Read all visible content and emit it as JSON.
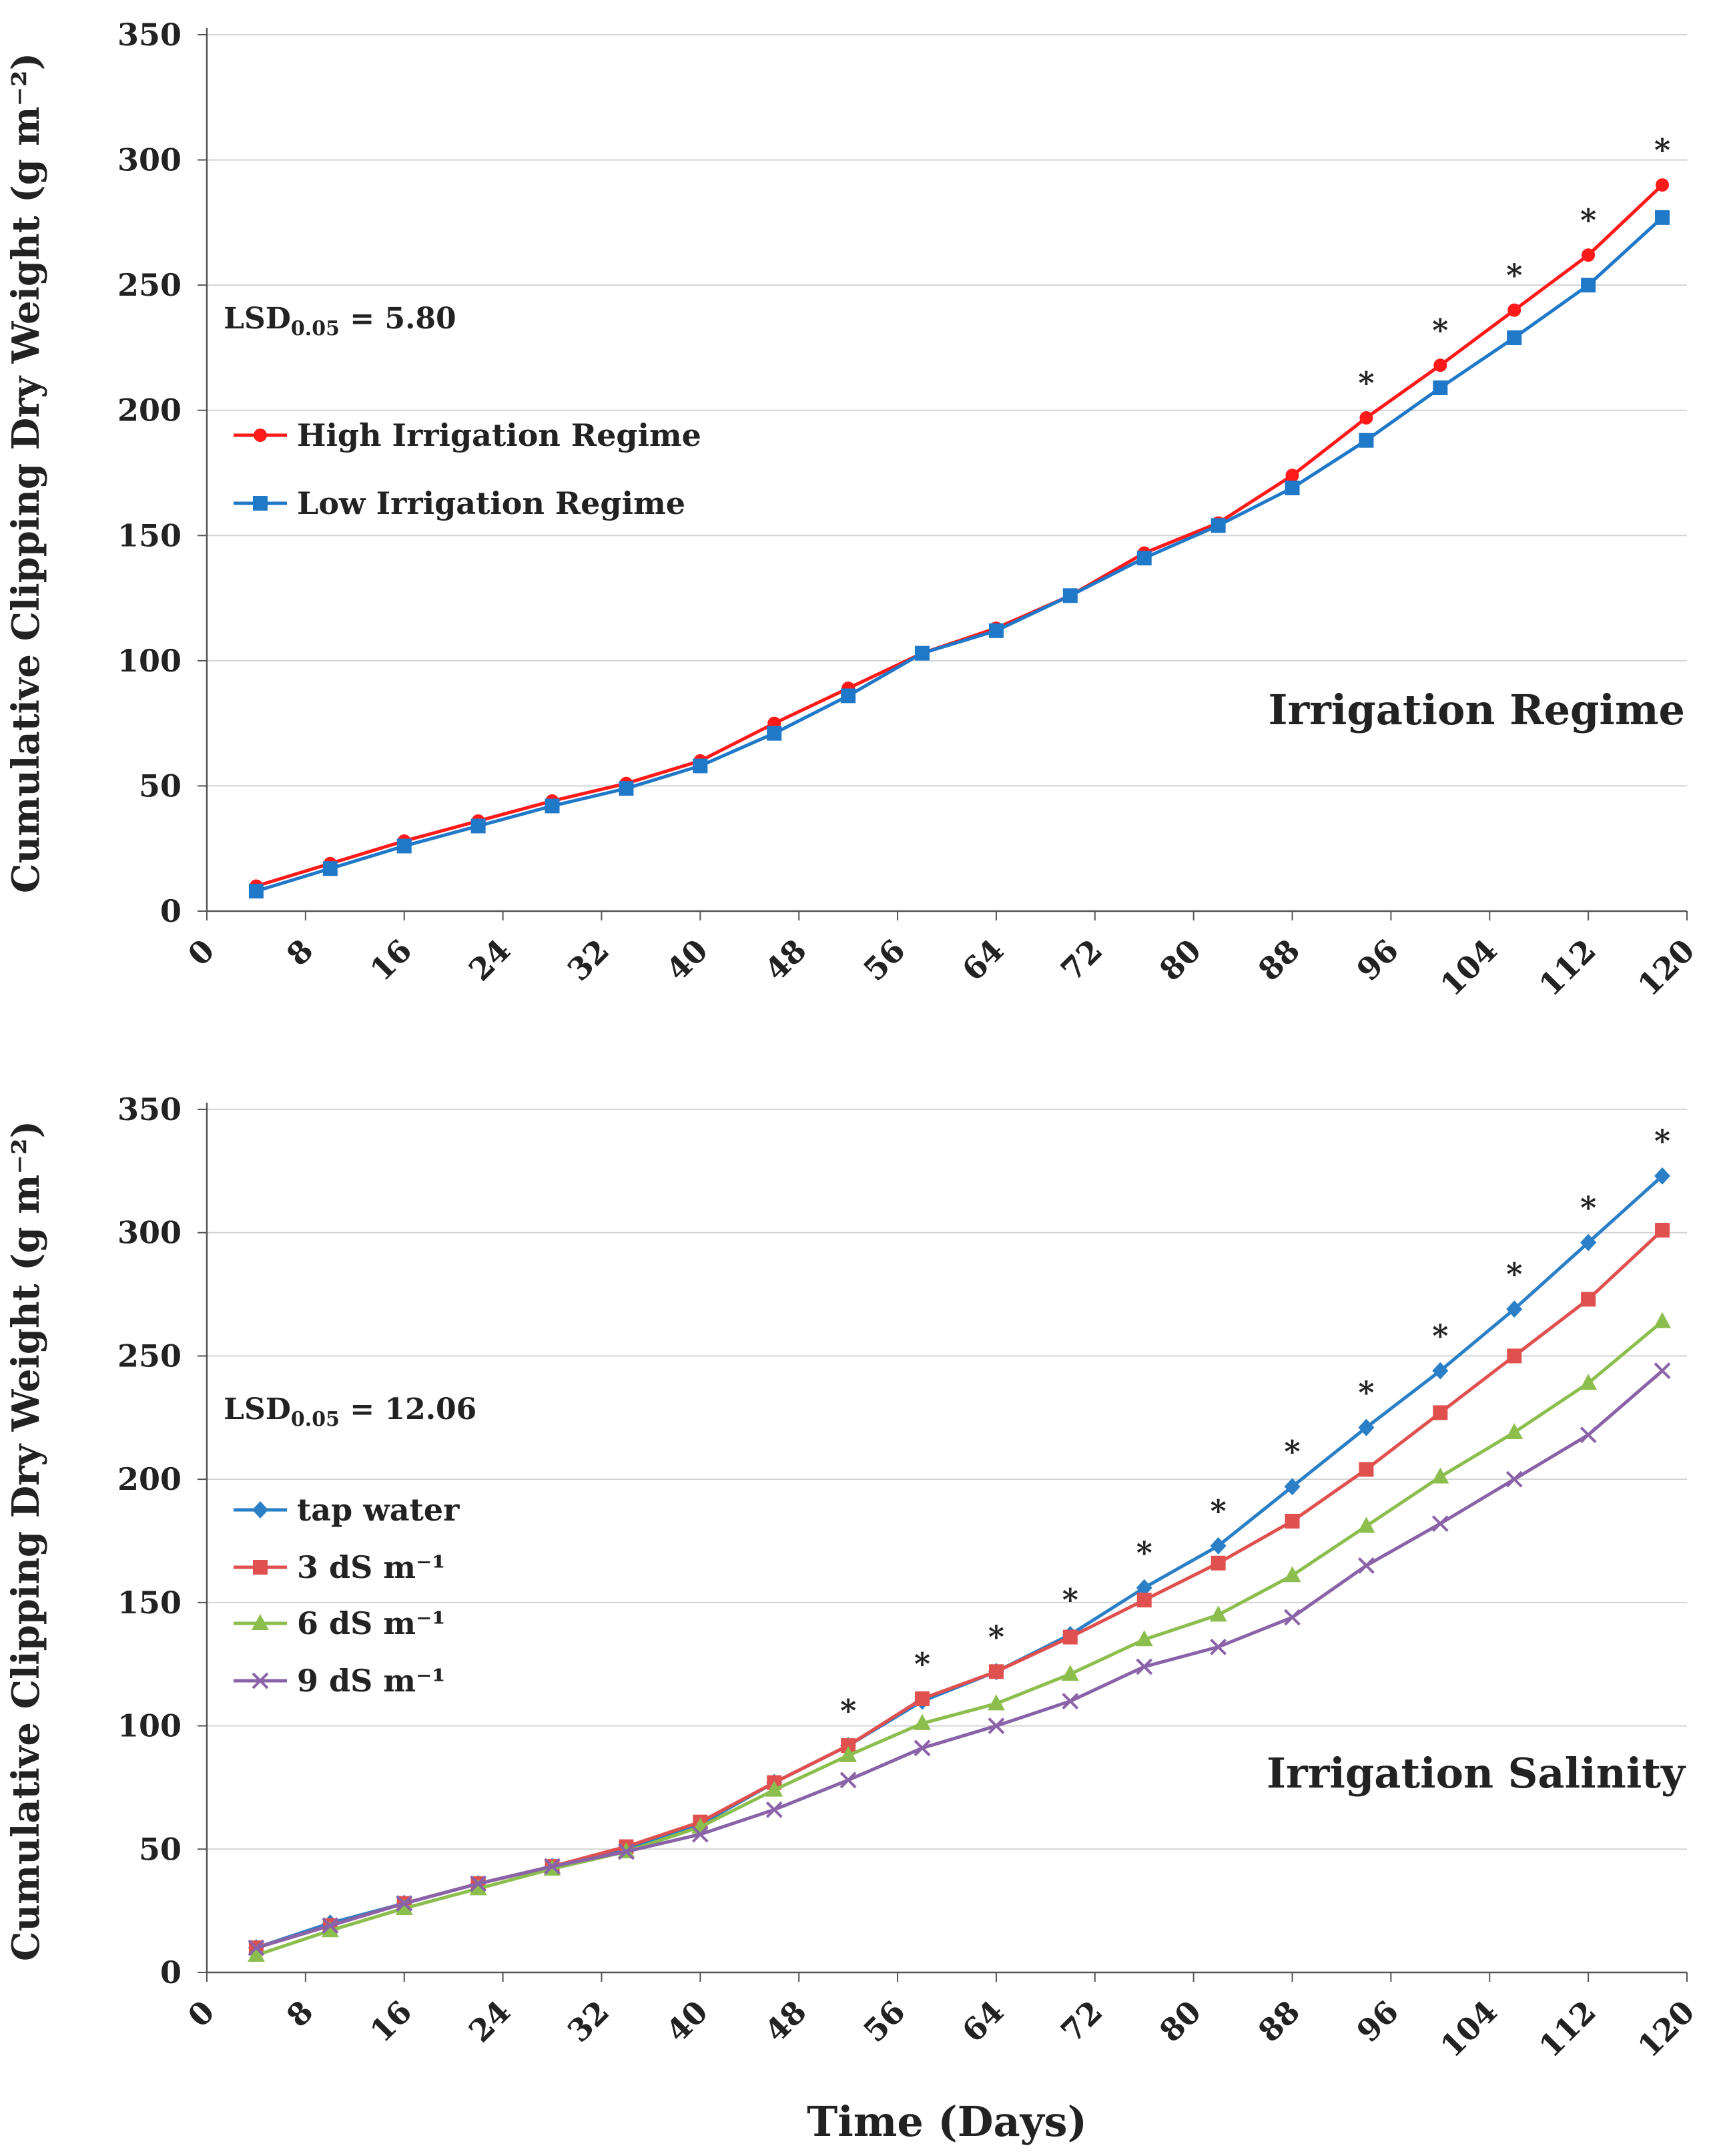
{
  "chart_data": [
    {
      "type": "line",
      "panel_label": "Irrigation Regime",
      "ylabel": "Cumulative Clipping Dry Weight (g m⁻²)",
      "xlabel": "",
      "ylim": [
        0,
        350
      ],
      "yticks": [
        0,
        50,
        100,
        150,
        200,
        250,
        300,
        350
      ],
      "xlim": [
        0,
        120
      ],
      "xticks": [
        0,
        8,
        16,
        24,
        32,
        40,
        48,
        56,
        64,
        72,
        80,
        88,
        96,
        104,
        112,
        120
      ],
      "x": [
        4,
        10,
        16,
        22,
        28,
        34,
        40,
        46,
        52,
        58,
        64,
        70,
        76,
        82,
        88,
        94,
        100,
        106,
        112,
        118
      ],
      "lsd": {
        "main": "LSD",
        "sub": "0.05",
        "value": " = 5.80"
      },
      "legend_position": "left",
      "series": [
        {
          "name": "High Irrigation Regime",
          "color": "#ff1a1a",
          "marker": "circle",
          "values": [
            10,
            19,
            28,
            36,
            44,
            51,
            60,
            75,
            89,
            103,
            113,
            126,
            143,
            155,
            174,
            197,
            218,
            240,
            262,
            290
          ]
        },
        {
          "name": "Low Irrigation Regime",
          "color": "#1f78c8",
          "marker": "square",
          "values": [
            8,
            17,
            26,
            34,
            42,
            49,
            58,
            71,
            86,
            103,
            112,
            126,
            141,
            154,
            169,
            188,
            209,
            229,
            250,
            277
          ]
        }
      ],
      "significance": [
        {
          "x": 94,
          "y": 197,
          "label": "*"
        },
        {
          "x": 100,
          "y": 218,
          "label": "*"
        },
        {
          "x": 106,
          "y": 240,
          "label": "*"
        },
        {
          "x": 112,
          "y": 262,
          "label": "*"
        },
        {
          "x": 118,
          "y": 290,
          "label": "*"
        }
      ]
    },
    {
      "type": "line",
      "panel_label": "Irrigation Salinity",
      "ylabel": "Cumulative Clipping Dry Weight (g m⁻²)",
      "xlabel": "Time (Days)",
      "ylim": [
        0,
        350
      ],
      "yticks": [
        0,
        50,
        100,
        150,
        200,
        250,
        300,
        350
      ],
      "xlim": [
        0,
        120
      ],
      "xticks": [
        0,
        8,
        16,
        24,
        32,
        40,
        48,
        56,
        64,
        72,
        80,
        88,
        96,
        104,
        112,
        120
      ],
      "x": [
        4,
        10,
        16,
        22,
        28,
        34,
        40,
        46,
        52,
        58,
        64,
        70,
        76,
        82,
        88,
        94,
        100,
        106,
        112,
        118
      ],
      "lsd": {
        "main": "LSD",
        "sub": "0.05",
        "value": " = 12.06"
      },
      "legend_position": "left",
      "series": [
        {
          "name": "tap water",
          "color": "#2a7fc6",
          "marker": "diamond",
          "values": [
            10,
            20,
            28,
            36,
            43,
            50,
            60,
            77,
            92,
            110,
            122,
            137,
            156,
            173,
            197,
            221,
            244,
            269,
            296,
            323
          ]
        },
        {
          "name": "3 dS m⁻¹",
          "color": "#e0504f",
          "marker": "square",
          "values": [
            10,
            19,
            28,
            36,
            43,
            51,
            61,
            77,
            92,
            111,
            122,
            136,
            151,
            166,
            183,
            204,
            227,
            250,
            273,
            301
          ]
        },
        {
          "name": "6 dS m⁻¹",
          "color": "#8cbe4d",
          "marker": "triangle",
          "values": [
            7,
            17,
            26,
            34,
            42,
            49,
            59,
            74,
            88,
            101,
            109,
            121,
            135,
            145,
            161,
            181,
            201,
            219,
            239,
            264
          ]
        },
        {
          "name": "9 dS m⁻¹",
          "color": "#8a62a8",
          "marker": "x",
          "values": [
            10,
            19,
            28,
            36,
            43,
            49,
            56,
            66,
            78,
            91,
            100,
            110,
            124,
            132,
            144,
            165,
            182,
            200,
            218,
            244
          ]
        }
      ],
      "significance": [
        {
          "x": 52,
          "y": 92,
          "label": "*"
        },
        {
          "x": 58,
          "y": 111,
          "label": "*"
        },
        {
          "x": 64,
          "y": 122,
          "label": "*"
        },
        {
          "x": 70,
          "y": 137,
          "label": "*"
        },
        {
          "x": 76,
          "y": 156,
          "label": "*"
        },
        {
          "x": 82,
          "y": 173,
          "label": "*"
        },
        {
          "x": 88,
          "y": 197,
          "label": "*"
        },
        {
          "x": 94,
          "y": 221,
          "label": "*"
        },
        {
          "x": 100,
          "y": 244,
          "label": "*"
        },
        {
          "x": 106,
          "y": 269,
          "label": "*"
        },
        {
          "x": 112,
          "y": 296,
          "label": "*"
        },
        {
          "x": 118,
          "y": 323,
          "label": "*"
        }
      ]
    }
  ]
}
